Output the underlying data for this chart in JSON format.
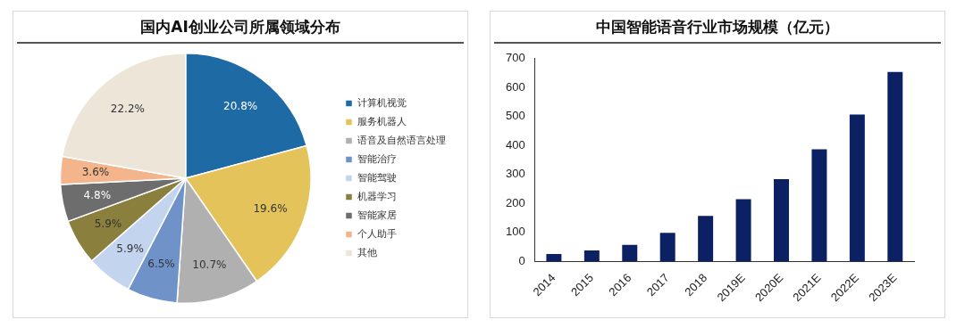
{
  "chart_data": [
    {
      "type": "pie",
      "title": "国内AI创业公司所属领域分布",
      "categories": [
        "计算机视觉",
        "服务机器人",
        "语音及自然语言处理",
        "智能治疗",
        "智能驾驶",
        "机器学习",
        "智能家居",
        "个人助手",
        "其他"
      ],
      "values": [
        20.8,
        19.6,
        10.7,
        6.5,
        5.9,
        5.9,
        4.8,
        3.6,
        22.2
      ],
      "colors": [
        "#1e6aa5",
        "#e3c35a",
        "#b0b0b0",
        "#6f93c9",
        "#c3d4ee",
        "#8a7f3c",
        "#6d6d6d",
        "#f4b48c",
        "#ede6d8"
      ],
      "value_labels": [
        "20.8%",
        "19.6%",
        "10.7%",
        "6.5%",
        "5.9%",
        "5.9%",
        "4.8%",
        "3.6%",
        "22.2%"
      ],
      "legend": "right"
    },
    {
      "type": "bar",
      "title": "中国智能语音行业市场规模（亿元）",
      "categories": [
        "2014",
        "2015",
        "2016",
        "2017",
        "2018",
        "2019E",
        "2020E",
        "2021E",
        "2022E",
        "2023E"
      ],
      "values": [
        26,
        38,
        57,
        99,
        157,
        215,
        284,
        387,
        507,
        654
      ],
      "color": "#0b2163",
      "ylim": [
        0,
        700
      ],
      "yticks": [
        0,
        100,
        200,
        300,
        400,
        500,
        600,
        700
      ],
      "grid": false
    }
  ]
}
